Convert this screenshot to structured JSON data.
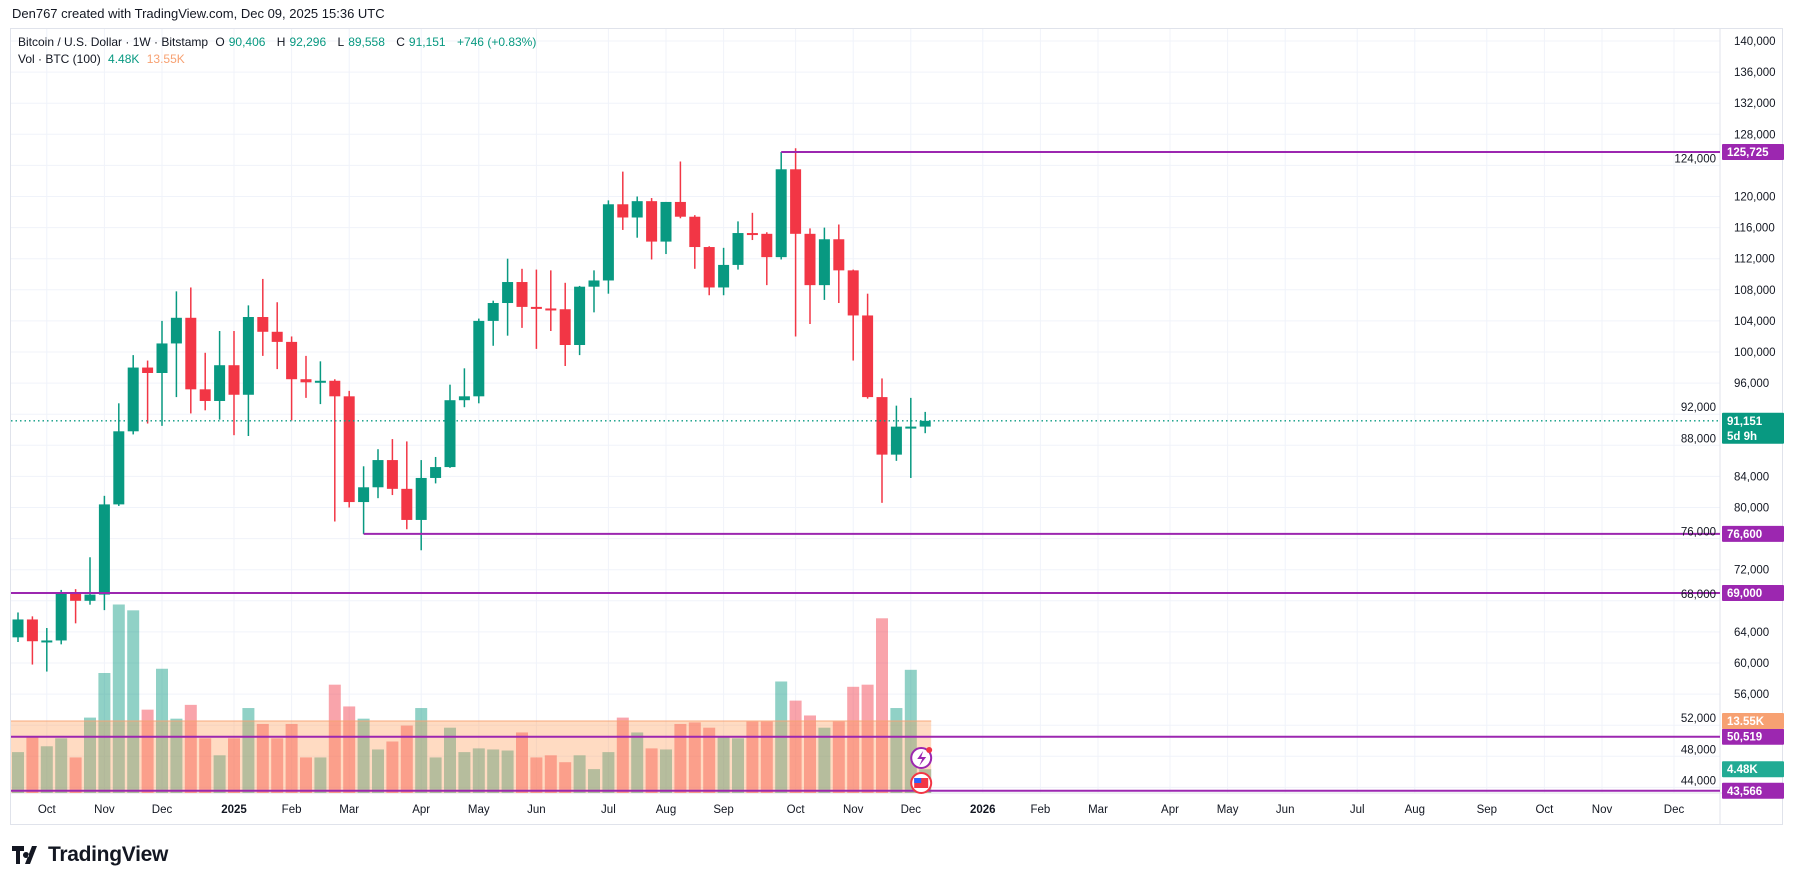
{
  "credit": "Den767 created with TradingView.com, Dec 09, 2025 15:36 UTC",
  "legend": {
    "symbol": "Bitcoin / U.S. Dollar · 1W · Bitstamp",
    "o_label": "O",
    "o": "90,406",
    "h_label": "H",
    "h": "92,296",
    "l_label": "L",
    "l": "89,558",
    "c_label": "C",
    "c": "91,151",
    "change": "+746 (+0.83%)",
    "vol_label": "Vol · BTC (100)",
    "vol": "4.48K",
    "vol_ma": "13.55K"
  },
  "brand": "TradingView",
  "colors": {
    "up": "#089981",
    "down": "#f23645",
    "level": "#9c27b0",
    "vol_ma": "#f7a172",
    "vol_badge": "#22ab94"
  },
  "chart_data": {
    "type": "candlestick",
    "interval": "1W",
    "ylim": [
      40000,
      142000
    ],
    "y_ticks": [
      140000,
      136000,
      132000,
      128000,
      124000,
      120000,
      116000,
      112000,
      108000,
      104000,
      100000,
      96000,
      92000,
      88000,
      84000,
      80000,
      76000,
      72000,
      68000,
      64000,
      60000,
      56000,
      52000,
      48000,
      44000
    ],
    "grid": true,
    "candles": [
      [
        "2024-09-23",
        63300,
        66500,
        62700,
        65600
      ],
      [
        "2024-09-30",
        65600,
        66000,
        59800,
        62800
      ],
      [
        "2024-10-07",
        62800,
        64500,
        58900,
        62900
      ],
      [
        "2024-10-14",
        62900,
        69400,
        62400,
        69000
      ],
      [
        "2024-10-21",
        69000,
        69500,
        65100,
        68000
      ],
      [
        "2024-10-28",
        68000,
        73600,
        67500,
        68800
      ],
      [
        "2024-11-04",
        68800,
        81500,
        66800,
        80400
      ],
      [
        "2024-11-11",
        80400,
        93400,
        80200,
        89800
      ],
      [
        "2024-11-18",
        89800,
        99600,
        89400,
        98000
      ],
      [
        "2024-11-25",
        98000,
        98900,
        90800,
        97300
      ],
      [
        "2024-12-02",
        97300,
        104000,
        90500,
        101100
      ],
      [
        "2024-12-09",
        101100,
        107800,
        94200,
        104400
      ],
      [
        "2024-12-16",
        104400,
        108300,
        92100,
        95200
      ],
      [
        "2024-12-23",
        95200,
        99900,
        92500,
        93700
      ],
      [
        "2024-12-30",
        93700,
        102700,
        91300,
        98300
      ],
      [
        "2025-01-06",
        98300,
        102700,
        89300,
        94500
      ],
      [
        "2025-01-13",
        94500,
        106000,
        89200,
        104500
      ],
      [
        "2025-01-20",
        104500,
        109400,
        99500,
        102600
      ],
      [
        "2025-01-27",
        102600,
        106400,
        97800,
        101300
      ],
      [
        "2025-02-03",
        101300,
        102000,
        91200,
        96500
      ],
      [
        "2025-02-10",
        96500,
        99500,
        94100,
        96100
      ],
      [
        "2025-02-17",
        96100,
        98800,
        93300,
        96300
      ],
      [
        "2025-02-24",
        96300,
        96500,
        78200,
        94300
      ],
      [
        "2025-03-03",
        94300,
        95000,
        80000,
        80700
      ],
      [
        "2025-03-10",
        80700,
        85300,
        76600,
        82600
      ],
      [
        "2025-03-17",
        82600,
        87500,
        81200,
        86100
      ],
      [
        "2025-03-24",
        86100,
        88800,
        81600,
        82400
      ],
      [
        "2025-03-31",
        82400,
        88500,
        77200,
        78400
      ],
      [
        "2025-04-07",
        78400,
        86100,
        74500,
        83800
      ],
      [
        "2025-04-14",
        83800,
        86500,
        83100,
        85200
      ],
      [
        "2025-04-21",
        85200,
        95800,
        85100,
        93800
      ],
      [
        "2025-04-28",
        93800,
        97900,
        92900,
        94300
      ],
      [
        "2025-05-05",
        94300,
        104300,
        93400,
        104000
      ],
      [
        "2025-05-12",
        104000,
        106600,
        100800,
        106300
      ],
      [
        "2025-05-19",
        106300,
        112000,
        102100,
        109000
      ],
      [
        "2025-05-26",
        109000,
        110700,
        103100,
        105800
      ],
      [
        "2025-06-02",
        105800,
        110600,
        100400,
        105600
      ],
      [
        "2025-06-09",
        105600,
        110500,
        102700,
        105500
      ],
      [
        "2025-06-16",
        105500,
        108900,
        98200,
        100900
      ],
      [
        "2025-06-23",
        100900,
        108500,
        99600,
        108400
      ],
      [
        "2025-06-30",
        108400,
        110500,
        105100,
        109200
      ],
      [
        "2025-07-07",
        109200,
        119500,
        107500,
        119000
      ],
      [
        "2025-07-14",
        119000,
        123200,
        115700,
        117300
      ],
      [
        "2025-07-21",
        117300,
        120000,
        114700,
        119400
      ],
      [
        "2025-07-28",
        119400,
        119800,
        111900,
        114200
      ],
      [
        "2025-08-04",
        114200,
        119300,
        112600,
        119300
      ],
      [
        "2025-08-11",
        119300,
        124500,
        117200,
        117400
      ],
      [
        "2025-08-18",
        117400,
        117600,
        110700,
        113500
      ],
      [
        "2025-08-25",
        113500,
        113600,
        107300,
        108300
      ],
      [
        "2025-09-01",
        108300,
        113400,
        107300,
        111200
      ],
      [
        "2025-09-08",
        111200,
        116800,
        110600,
        115300
      ],
      [
        "2025-09-15",
        115300,
        117900,
        114400,
        115200
      ],
      [
        "2025-09-22",
        115200,
        115400,
        108600,
        112200
      ],
      [
        "2025-09-29",
        112200,
        125725,
        111900,
        123500
      ],
      [
        "2025-10-06",
        123500,
        126200,
        102000,
        115200
      ],
      [
        "2025-10-13",
        115200,
        115900,
        103600,
        108600
      ],
      [
        "2025-10-20",
        108600,
        116000,
        106700,
        114500
      ],
      [
        "2025-10-27",
        114500,
        116400,
        106300,
        110500
      ],
      [
        "2025-11-03",
        110500,
        110600,
        98900,
        104700
      ],
      [
        "2025-11-10",
        104700,
        107500,
        94000,
        94200
      ],
      [
        "2025-11-17",
        94200,
        96600,
        80600,
        86800
      ],
      [
        "2025-11-24",
        86800,
        93100,
        86000,
        90400
      ],
      [
        "2025-12-01",
        90400,
        94100,
        83800,
        90406
      ],
      [
        "2025-12-08",
        90406,
        92296,
        89558,
        91151
      ]
    ],
    "volume_k": [
      7.7,
      10.7,
      8.8,
      10.3,
      6.7,
      14.2,
      22.6,
      35.5,
      34.4,
      15.7,
      23.4,
      14,
      16.6,
      10.3,
      7.1,
      10.3,
      16,
      13,
      10.3,
      13,
      6.7,
      6.7,
      20.4,
      16.3,
      14,
      8.2,
      9.7,
      12.7,
      16,
      6.7,
      12.3,
      7.7,
      8.4,
      8.2,
      8,
      11.4,
      6.7,
      7.1,
      5.8,
      7.1,
      4.5,
      7.7,
      14.2,
      11.4,
      8.4,
      8.2,
      13,
      13.3,
      12.3,
      10.5,
      10.3,
      13.5,
      13.5,
      21,
      17.4,
      14.6,
      12.3,
      13.5,
      20,
      20.4,
      32.9,
      16,
      23.2,
      4.48
    ],
    "volume_ma_k": 13.55,
    "levels": [
      {
        "price": 125725,
        "label": "125,725",
        "from": "2025-09-29"
      },
      {
        "price": 76600,
        "label": "76,600",
        "from": "2025-03-10"
      },
      {
        "price": 69000,
        "label": "69,000",
        "from": null
      },
      {
        "price": 50519,
        "label": "50,519",
        "from": null
      },
      {
        "price": 43566,
        "label": "43,566",
        "from": null
      }
    ],
    "last_price": {
      "label": "91,151",
      "countdown": "5d 9h",
      "price": 91151
    },
    "volume_badges": {
      "ma": "13.55K",
      "last": "4.48K"
    },
    "x_labels": [
      [
        "Oct",
        "2024-10-07"
      ],
      [
        "Nov",
        "2024-11-04"
      ],
      [
        "Dec",
        "2024-12-02"
      ],
      [
        "2025",
        "2025-01-06"
      ],
      [
        "Feb",
        "2025-02-03"
      ],
      [
        "Mar",
        "2025-03-03"
      ],
      [
        "Apr",
        "2025-04-07"
      ],
      [
        "May",
        "2025-05-05"
      ],
      [
        "Jun",
        "2025-06-02"
      ],
      [
        "Jul",
        "2025-07-07"
      ],
      [
        "Aug",
        "2025-08-04"
      ],
      [
        "Sep",
        "2025-09-01"
      ],
      [
        "Oct",
        "2025-10-06"
      ],
      [
        "Nov",
        "2025-11-03"
      ],
      [
        "Dec",
        "2025-12-01"
      ],
      [
        "2026",
        "2026-01-05"
      ],
      [
        "Feb",
        "2026-02-02"
      ],
      [
        "Mar",
        "2026-03-02"
      ],
      [
        "Apr",
        "2026-04-06"
      ],
      [
        "May",
        "2026-05-04"
      ],
      [
        "Jun",
        "2026-06-01"
      ],
      [
        "Jul",
        "2026-07-06"
      ],
      [
        "Aug",
        "2026-08-03"
      ],
      [
        "Sep",
        "2026-09-07"
      ],
      [
        "Oct",
        "2026-10-05"
      ],
      [
        "Nov",
        "2026-11-02"
      ],
      [
        "Dec",
        "2026-12-07"
      ]
    ]
  }
}
